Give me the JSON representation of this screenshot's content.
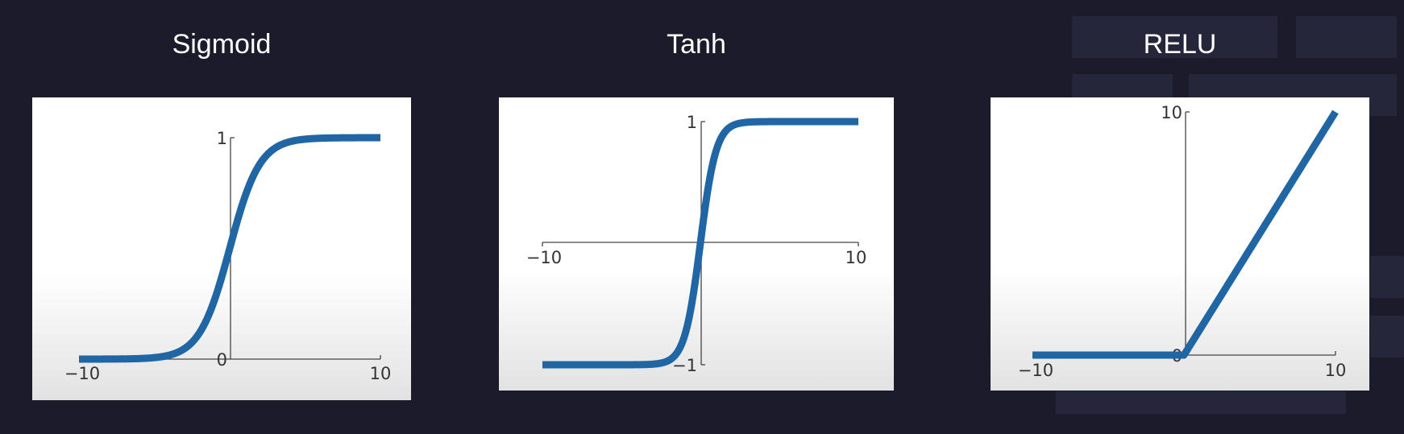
{
  "chart_data": [
    {
      "type": "line",
      "title": "Sigmoid",
      "function": "sigmoid",
      "xlim": [
        -10,
        10
      ],
      "ylim": [
        0,
        1
      ],
      "x_tick_labels": [
        "−10",
        "10"
      ],
      "y_tick_labels": [
        "1",
        "0"
      ],
      "series": [
        {
          "color": "#2066a5",
          "x": [
            -10,
            -8,
            -6,
            -4,
            -3,
            -2,
            -1,
            0,
            1,
            2,
            3,
            4,
            6,
            8,
            10
          ],
          "y": [
            0.0,
            0.0003,
            0.0025,
            0.018,
            0.047,
            0.119,
            0.269,
            0.5,
            0.731,
            0.881,
            0.953,
            0.982,
            0.9975,
            0.9997,
            1.0
          ]
        }
      ]
    },
    {
      "type": "line",
      "title": "Tanh",
      "function": "tanh",
      "xlim": [
        -10,
        10
      ],
      "ylim": [
        -1,
        1
      ],
      "x_tick_labels": [
        "−10",
        "10"
      ],
      "y_tick_labels": [
        "1",
        "−1"
      ],
      "series": [
        {
          "color": "#2066a5",
          "x": [
            -10,
            -6,
            -4,
            -3,
            -2,
            -1.5,
            -1,
            -0.5,
            0,
            0.5,
            1,
            1.5,
            2,
            3,
            4,
            6,
            10
          ],
          "y": [
            -1.0,
            -1.0,
            -0.999,
            -0.995,
            -0.964,
            -0.905,
            -0.762,
            -0.462,
            0,
            0.462,
            0.762,
            0.905,
            0.964,
            0.995,
            0.999,
            1.0,
            1.0
          ]
        }
      ]
    },
    {
      "type": "line",
      "title": "RELU",
      "function": "relu",
      "xlim": [
        -10,
        10
      ],
      "ylim": [
        0,
        10
      ],
      "x_tick_labels": [
        "−10",
        "10"
      ],
      "y_tick_labels": [
        "10",
        "0"
      ],
      "series": [
        {
          "color": "#2066a5",
          "x": [
            -10,
            0,
            10
          ],
          "y": [
            0,
            0,
            10
          ]
        }
      ]
    }
  ]
}
